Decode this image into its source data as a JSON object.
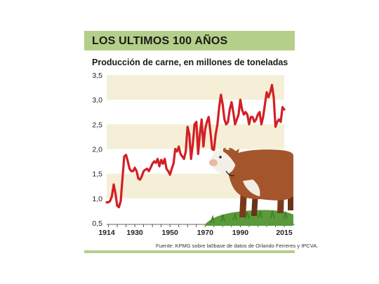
{
  "header": {
    "title": "LOS ULTIMOS 100 AÑOS",
    "band_color": "#b4cf8a"
  },
  "subtitle": "Producción de carne, en millones de toneladas",
  "source": "Fuente: KPMG sobre la0base de datos de Orlando Ferreres y IPCVA.",
  "decoration": {
    "icon": "hereford-cow-on-grass-icon"
  },
  "colors": {
    "line": "#d31f26",
    "band": "#f4efd6",
    "accent": "#b4cf8a"
  },
  "chart_data": {
    "type": "line",
    "title": "LOS ULTIMOS 100 AÑOS",
    "subtitle": "Producción de carne, en millones de toneladas",
    "xlabel": "",
    "ylabel": "",
    "xlim": [
      1914,
      2015
    ],
    "ylim": [
      0.5,
      3.5
    ],
    "yticks": [
      "0,5",
      "1,0",
      "1,5",
      "2,0",
      "2,5",
      "3,0",
      "3,5"
    ],
    "xticks": [
      "1914",
      "1930",
      "1950",
      "1970",
      "1990",
      "2015"
    ],
    "grid": "alternating horizontal bands",
    "legend": "none",
    "series": [
      {
        "x": [
          1914,
          1915,
          1916,
          1917,
          1918,
          1919,
          1920,
          1921,
          1922,
          1923,
          1924,
          1925,
          1926,
          1927,
          1928,
          1929,
          1930,
          1931,
          1932,
          1933,
          1934,
          1935,
          1936,
          1937,
          1938,
          1939,
          1940,
          1941,
          1942,
          1943,
          1944,
          1945,
          1946,
          1947,
          1948,
          1949,
          1950,
          1951,
          1952,
          1953,
          1954,
          1955,
          1956,
          1957,
          1958,
          1959,
          1960,
          1961,
          1962,
          1963,
          1964,
          1965,
          1966,
          1967,
          1968,
          1969,
          1970,
          1971,
          1972,
          1973,
          1974,
          1975,
          1976,
          1977,
          1978,
          1979,
          1980,
          1981,
          1982,
          1983,
          1984,
          1985,
          1986,
          1987,
          1988,
          1989,
          1990,
          1991,
          1992,
          1993,
          1994,
          1995,
          1996,
          1997,
          1998,
          1999,
          2000,
          2001,
          2002,
          2003,
          2004,
          2005,
          2006,
          2007,
          2008,
          2009,
          2010,
          2011,
          2012,
          2013,
          2014,
          2015
        ],
        "values": [
          0.92,
          0.92,
          0.95,
          1.05,
          1.28,
          1.1,
          0.85,
          0.82,
          0.95,
          1.4,
          1.85,
          1.88,
          1.75,
          1.6,
          1.55,
          1.55,
          1.62,
          1.55,
          1.4,
          1.38,
          1.45,
          1.55,
          1.58,
          1.6,
          1.55,
          1.62,
          1.7,
          1.75,
          1.72,
          1.8,
          1.65,
          1.78,
          1.7,
          1.8,
          1.6,
          1.55,
          1.48,
          1.6,
          1.7,
          2.0,
          1.95,
          2.05,
          1.9,
          1.85,
          1.8,
          1.95,
          2.45,
          2.3,
          1.8,
          2.1,
          2.5,
          2.55,
          1.9,
          2.3,
          2.6,
          2.05,
          2.4,
          2.55,
          2.65,
          2.35,
          2.0,
          1.98,
          2.3,
          2.5,
          2.85,
          3.1,
          2.9,
          2.6,
          2.5,
          2.55,
          2.8,
          2.95,
          2.75,
          2.5,
          2.6,
          2.7,
          3.0,
          2.8,
          2.7,
          2.75,
          2.7,
          2.5,
          2.65,
          2.65,
          2.55,
          2.6,
          2.7,
          2.75,
          2.5,
          2.65,
          2.9,
          3.15,
          3.05,
          3.15,
          3.3,
          3.05,
          2.45,
          2.55,
          2.6,
          2.55,
          2.85,
          2.8
        ]
      }
    ]
  }
}
